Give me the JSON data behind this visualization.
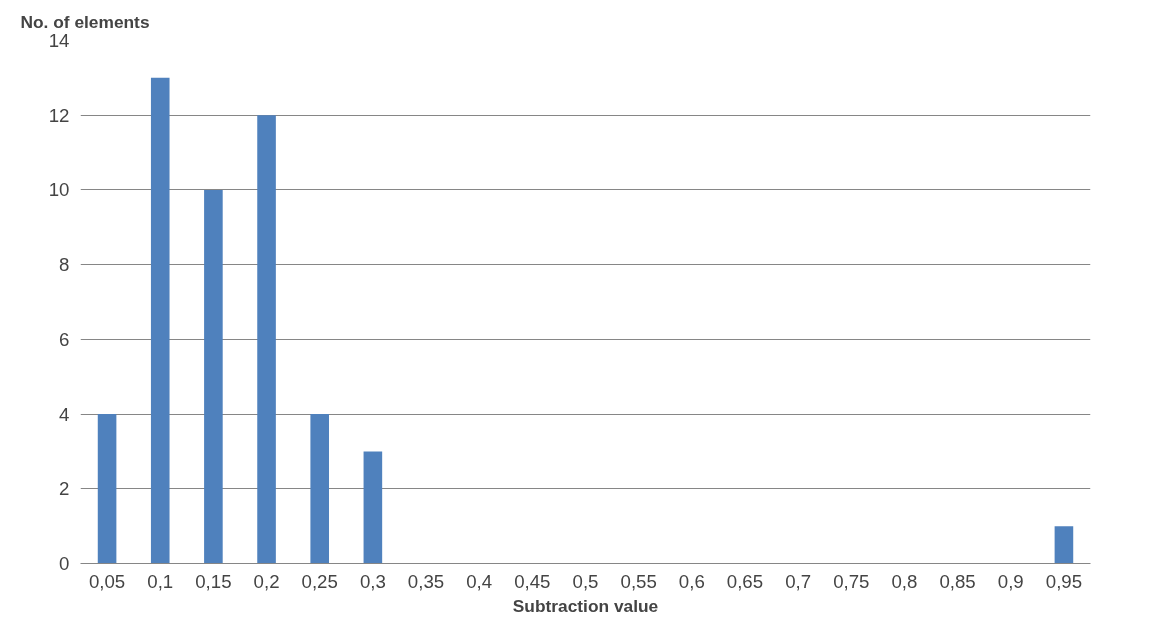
{
  "chart_data": {
    "type": "bar",
    "ylabel": "No. of elements",
    "xlabel": "Subtraction value",
    "categories": [
      "0,05",
      "0,1",
      "0,15",
      "0,2",
      "0,25",
      "0,3",
      "0,35",
      "0,4",
      "0,45",
      "0,5",
      "0,55",
      "0,6",
      "0,65",
      "0,7",
      "0,75",
      "0,8",
      "0,85",
      "0,9",
      "0,95"
    ],
    "values": [
      4,
      13,
      10,
      12,
      4,
      3,
      0,
      0,
      0,
      0,
      0,
      0,
      0,
      0,
      0,
      0,
      0,
      0,
      1
    ],
    "color": "#4f81bd",
    "ylim": [
      0,
      14
    ],
    "yticks": [
      0,
      2,
      4,
      6,
      8,
      10,
      12,
      14
    ],
    "grid": "y"
  }
}
